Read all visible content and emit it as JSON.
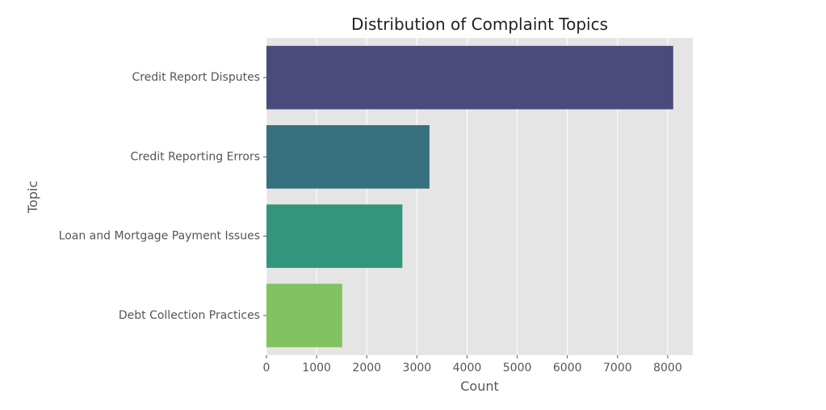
{
  "chart_data": {
    "type": "bar",
    "orientation": "horizontal",
    "title": "Distribution of Complaint Topics",
    "xlabel": "Count",
    "ylabel": "Topic",
    "categories": [
      "Credit Report Disputes",
      "Credit Reporting Errors",
      "Loan and Mortgage Payment Issues",
      "Debt Collection Practices"
    ],
    "values": [
      8110,
      3250,
      2710,
      1510
    ],
    "colors": [
      "#4a4a7c",
      "#366f7e",
      "#33967c",
      "#80c260"
    ],
    "xlim": [
      0,
      8500
    ],
    "x_ticks": [
      0,
      1000,
      2000,
      3000,
      4000,
      5000,
      6000,
      7000,
      8000
    ],
    "grid": "vertical",
    "style": {
      "plot_background": "#e5e5e5",
      "grid_color": "#ffffff",
      "text_color": "#555555",
      "title_color": "#222222"
    }
  }
}
